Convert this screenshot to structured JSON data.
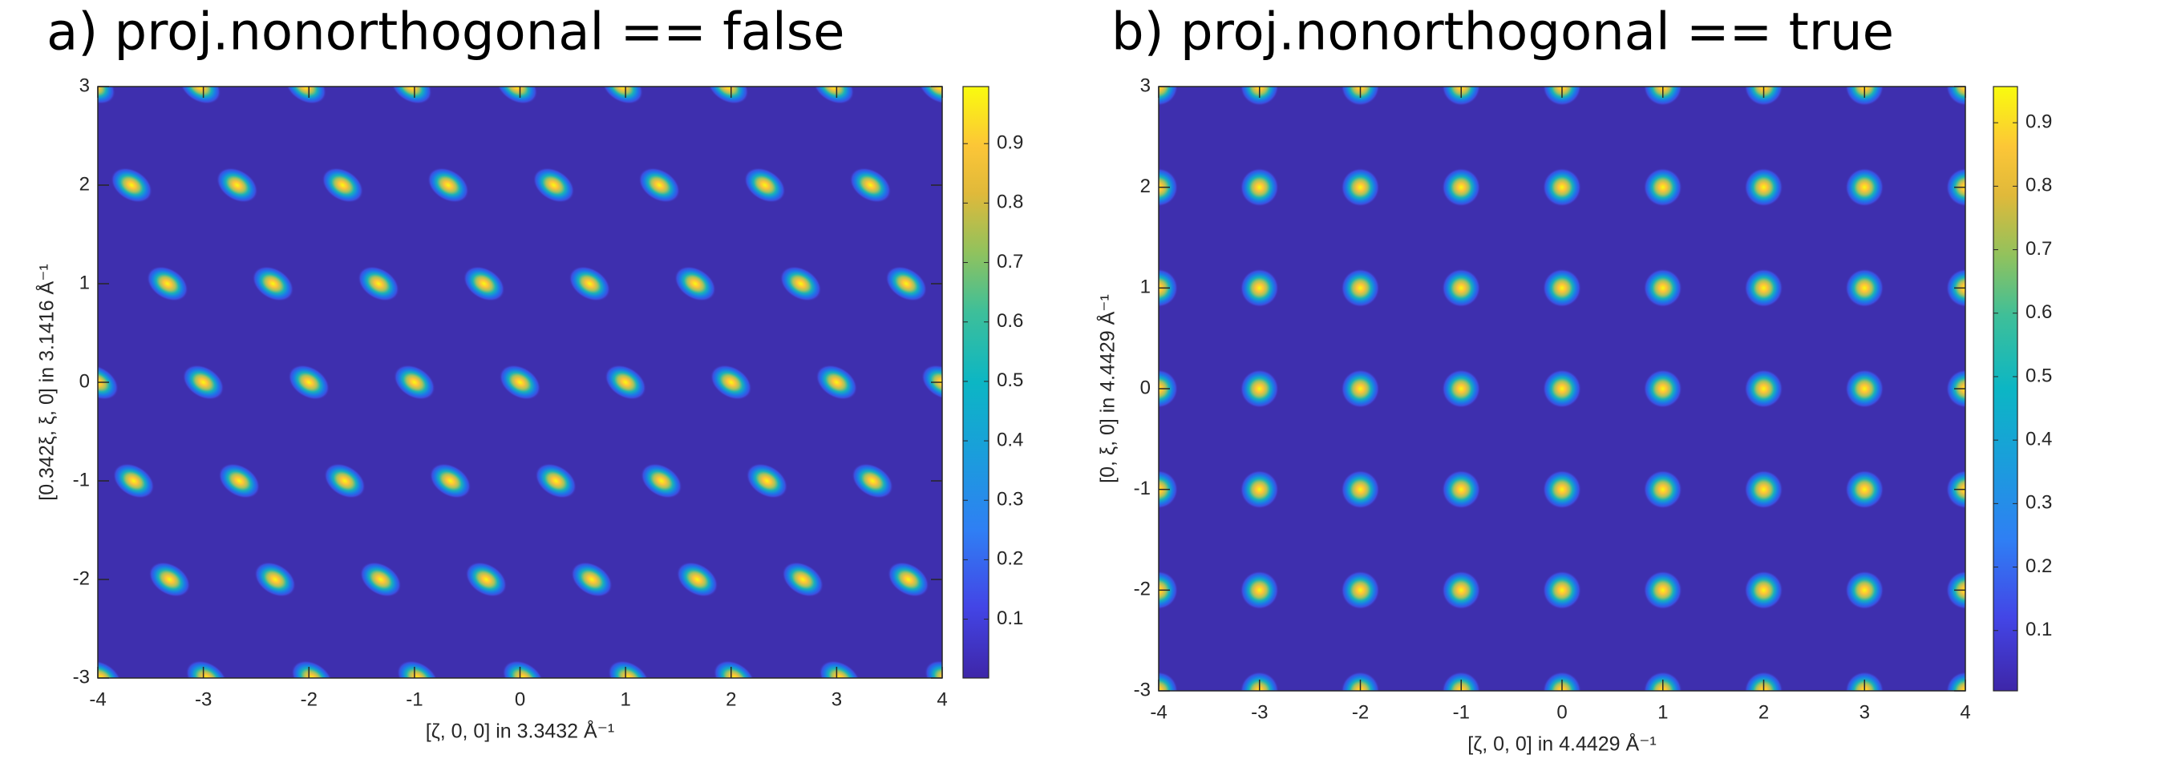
{
  "chart_data": [
    {
      "type": "heatmap",
      "title": "a) proj.nonorthogonal == false",
      "xlabel": "[ζ, 0, 0] in 3.3432 Å⁻¹",
      "ylabel": "[0.342ξ, ξ, 0] in 3.1416 Å⁻¹",
      "xlim": [
        -4,
        4
      ],
      "ylim": [
        -3,
        3
      ],
      "xticks": [
        -4,
        -3,
        -2,
        -1,
        0,
        1,
        2,
        3,
        4
      ],
      "yticks": [
        -3,
        -2,
        -1,
        0,
        1,
        2,
        3
      ],
      "clim": [
        0.001,
        0.996
      ],
      "cticks": [
        0.1,
        0.2,
        0.3,
        0.4,
        0.5,
        0.6,
        0.7,
        0.8,
        0.9
      ],
      "x": [
        -4.03,
        -3.03,
        -2.03,
        -1.03,
        -0.03,
        0.97,
        1.97,
        2.97,
        3.97,
        -3.68,
        -2.68,
        -1.68,
        -0.68,
        0.32,
        1.32,
        2.32,
        3.32,
        -3.34,
        -2.34,
        -1.34,
        -0.34,
        0.66,
        1.66,
        2.66,
        3.66,
        -4,
        -3,
        -2,
        -1,
        0,
        1,
        2,
        3,
        4,
        -3.66,
        -2.66,
        -1.66,
        -0.66,
        0.34,
        1.34,
        2.34,
        3.34,
        -3.32,
        -2.32,
        -1.32,
        -0.32,
        0.68,
        1.68,
        2.68,
        3.68,
        -3.97,
        -2.97,
        -1.97,
        -0.97,
        0.03,
        1.03,
        2.03,
        3.03,
        4.03
      ],
      "y": [
        3,
        3,
        3,
        3,
        3,
        3,
        3,
        3,
        3,
        2,
        2,
        2,
        2,
        2,
        2,
        2,
        2,
        1,
        1,
        1,
        1,
        1,
        1,
        1,
        1,
        0,
        0,
        0,
        0,
        0,
        0,
        0,
        0,
        0,
        -1,
        -1,
        -1,
        -1,
        -1,
        -1,
        -1,
        -1,
        -2,
        -2,
        -2,
        -2,
        -2,
        -2,
        -2,
        -2,
        -3,
        -3,
        -3,
        -3,
        -3,
        -3,
        -3,
        -3,
        -3
      ]
    },
    {
      "type": "heatmap",
      "title": "b) proj.nonorthogonal == true",
      "xlabel": "[ζ, 0, 0] in 4.4429 Å⁻¹",
      "ylabel": "[0, ξ, 0] in 4.4429 Å⁻¹",
      "xlim": [
        -4,
        4
      ],
      "ylim": [
        -3,
        3
      ],
      "xticks": [
        -4,
        -3,
        -2,
        -1,
        0,
        1,
        2,
        3,
        4
      ],
      "yticks": [
        -3,
        -2,
        -1,
        0,
        1,
        2,
        3
      ],
      "clim": [
        0.005,
        0.957
      ],
      "cticks": [
        0.1,
        0.2,
        0.3,
        0.4,
        0.5,
        0.6,
        0.7,
        0.8,
        0.9
      ],
      "x": [
        -4,
        -3,
        -2,
        -1,
        0,
        1,
        2,
        3,
        4,
        -4,
        -3,
        -2,
        -1,
        0,
        1,
        2,
        3,
        4,
        -4,
        -3,
        -2,
        -1,
        0,
        1,
        2,
        3,
        4,
        -4,
        -3,
        -2,
        -1,
        0,
        1,
        2,
        3,
        4,
        -4,
        -3,
        -2,
        -1,
        0,
        1,
        2,
        3,
        4,
        -4,
        -3,
        -2,
        -1,
        0,
        1,
        2,
        3,
        4,
        -4,
        -3,
        -2,
        -1,
        0,
        1,
        2,
        3,
        4
      ],
      "y": [
        3,
        3,
        3,
        3,
        3,
        3,
        3,
        3,
        3,
        2,
        2,
        2,
        2,
        2,
        2,
        2,
        2,
        2,
        1,
        1,
        1,
        1,
        1,
        1,
        1,
        1,
        1,
        0,
        0,
        0,
        0,
        0,
        0,
        0,
        0,
        0,
        -1,
        -1,
        -1,
        -1,
        -1,
        -1,
        -1,
        -1,
        -1,
        -2,
        -2,
        -2,
        -2,
        -2,
        -2,
        -2,
        -2,
        -2,
        -3,
        -3,
        -3,
        -3,
        -3,
        -3,
        -3,
        -3,
        -3
      ]
    }
  ]
}
